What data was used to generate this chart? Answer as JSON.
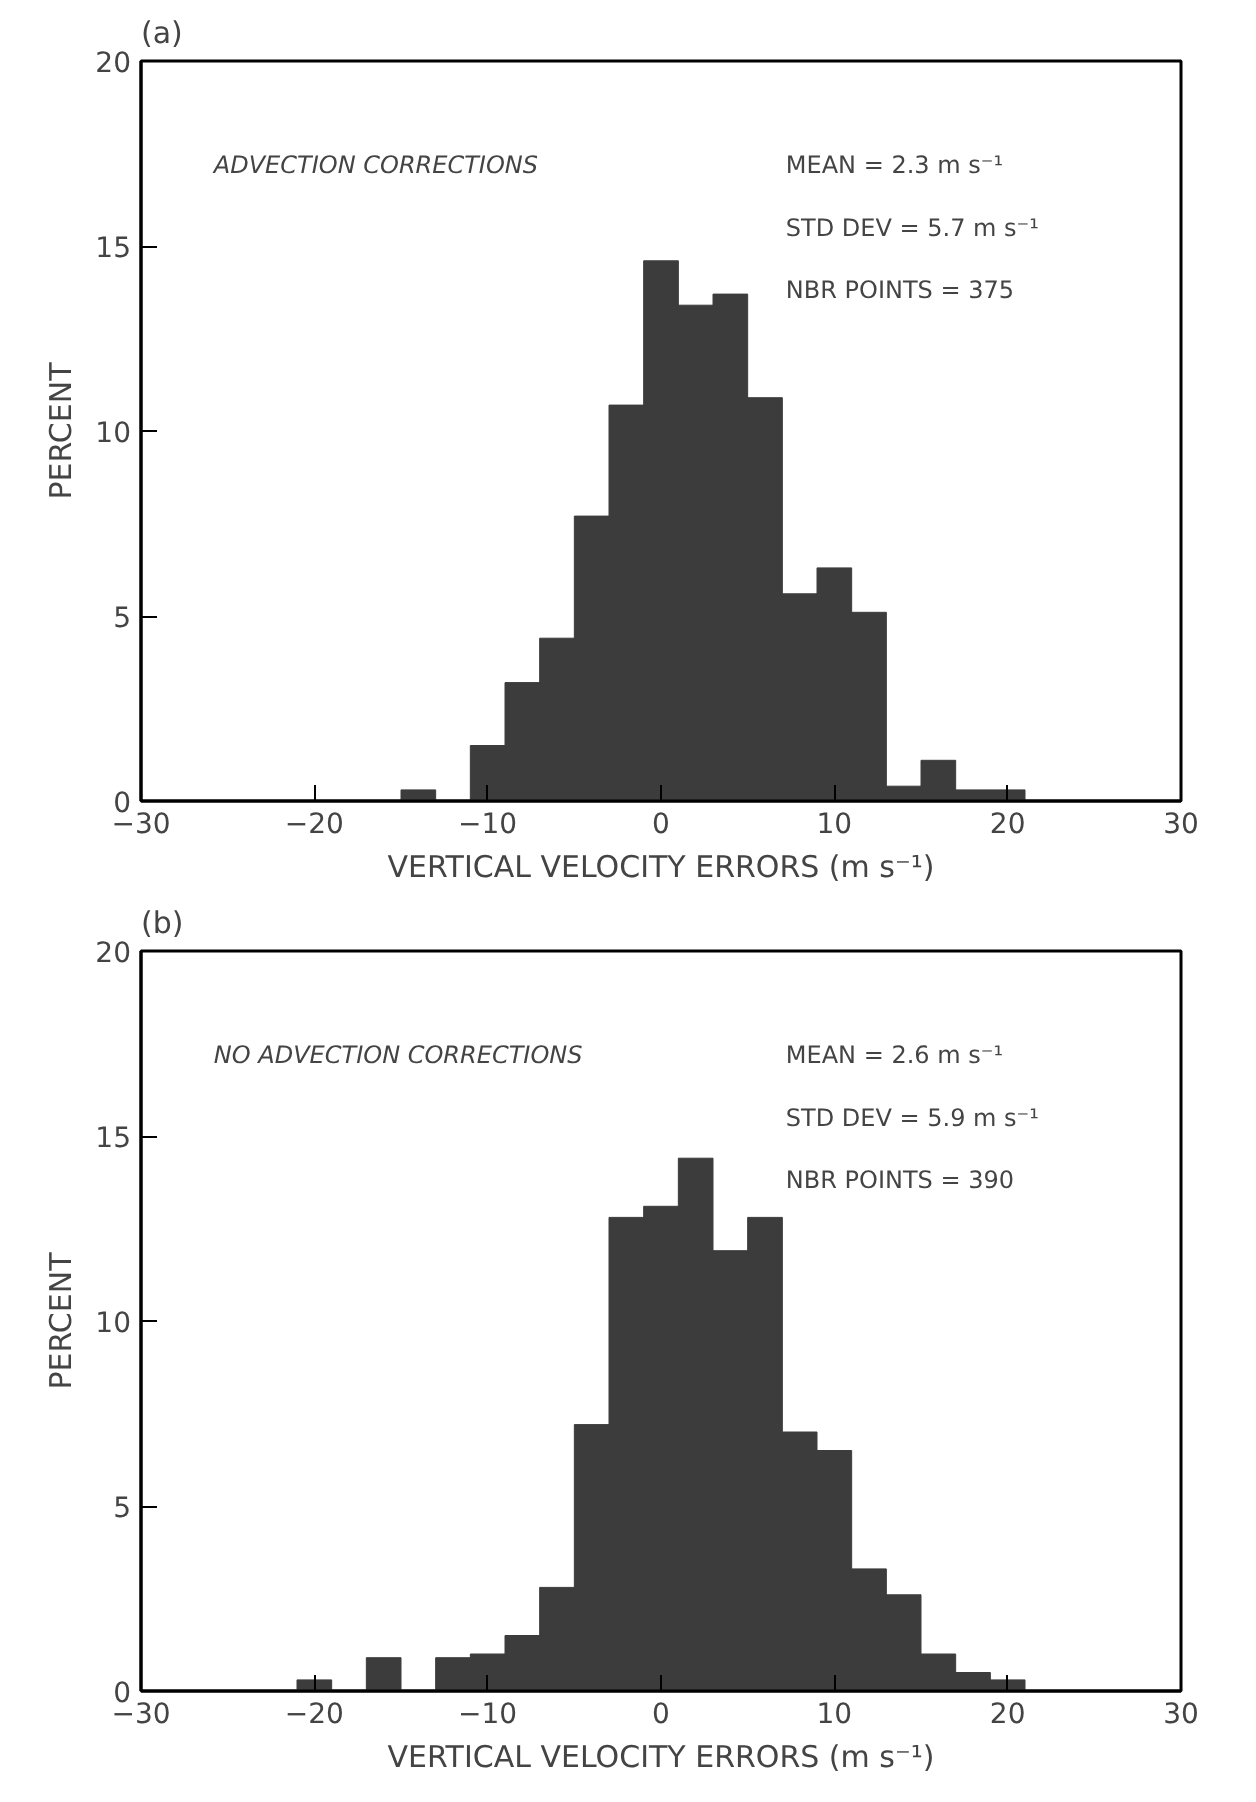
{
  "chart_data": [
    {
      "type": "histogram",
      "title": "(a)",
      "xlabel": "VERTICAL VELOCITY ERRORS (m s⁻¹)",
      "ylabel": "PERCENT",
      "annotations": [
        "ADVECTION CORRECTIONS",
        "MEAN = 2.3 m s⁻¹",
        "STD DEV = 5.7 m s⁻¹",
        "NBR POINTS = 375"
      ],
      "bins": [
        -15,
        -13,
        -11,
        -9,
        -7,
        -5,
        -3,
        -1,
        1,
        3,
        5,
        7,
        9,
        11,
        13,
        15,
        17,
        19,
        21
      ],
      "values": [
        0.3,
        0,
        1.5,
        3.2,
        4.4,
        7.7,
        10.7,
        14.6,
        13.4,
        13.7,
        10.9,
        5.6,
        6.3,
        5.1,
        0.4,
        1.1,
        0.3,
        0.3
      ],
      "color": "#3c3c3c",
      "xlim": [
        -30,
        30
      ],
      "xticks": [
        -30,
        -20,
        -10,
        0,
        10,
        20,
        30
      ],
      "ylim": [
        0,
        20
      ],
      "yticks": [
        0,
        5,
        10,
        15,
        20
      ],
      "grid": false
    },
    {
      "type": "histogram",
      "title": "(b)",
      "xlabel": "VERTICAL VELOCITY ERRORS (m s⁻¹)",
      "ylabel": "PERCENT",
      "annotations": [
        "NO ADVECTION CORRECTIONS",
        "MEAN = 2.6 m s⁻¹",
        "STD DEV = 5.9 m s⁻¹",
        "NBR POINTS = 390"
      ],
      "bins": [
        -21,
        -19,
        -17,
        -15,
        -13,
        -11,
        -9,
        -7,
        -5,
        -3,
        -1,
        1,
        3,
        5,
        7,
        9,
        11,
        13,
        15,
        17,
        19,
        21
      ],
      "values": [
        0.3,
        0,
        0.9,
        0,
        0.9,
        1.0,
        1.5,
        2.8,
        7.2,
        12.8,
        13.1,
        14.4,
        11.9,
        12.8,
        7.0,
        6.5,
        3.3,
        2.6,
        1.0,
        0.5,
        0.3
      ],
      "color": "#3c3c3c",
      "xlim": [
        -30,
        30
      ],
      "xticks": [
        -30,
        -20,
        -10,
        0,
        10,
        20,
        30
      ],
      "ylim": [
        0,
        20
      ],
      "yticks": [
        0,
        5,
        10,
        15,
        20
      ],
      "grid": false
    }
  ]
}
